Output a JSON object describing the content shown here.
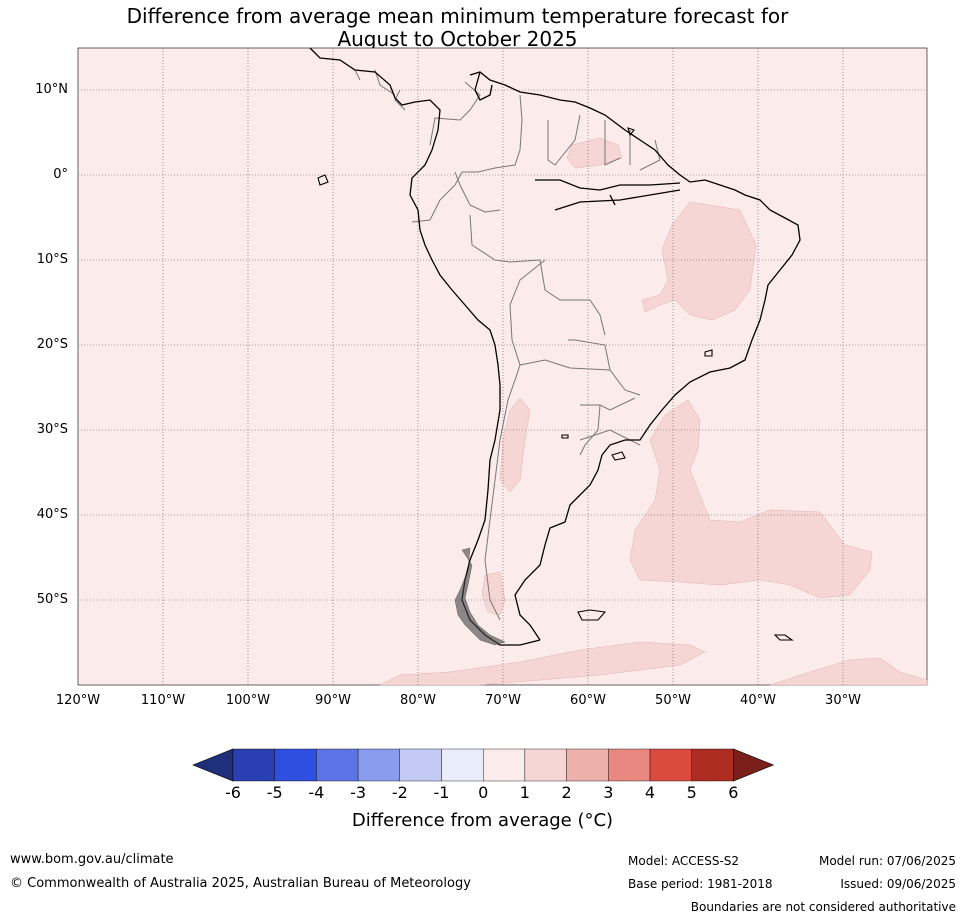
{
  "title_line1": "Difference from average mean minimum temperature forecast for",
  "title_line2": "August to October 2025",
  "latitude_labels": [
    "10°N",
    "0°",
    "10°S",
    "20°S",
    "30°S",
    "40°S",
    "50°S"
  ],
  "longitude_labels": [
    "120°W",
    "110°W",
    "100°W",
    "90°W",
    "80°W",
    "70°W",
    "60°W",
    "50°W",
    "40°W",
    "30°W"
  ],
  "colorbar": {
    "ticks": [
      "-6",
      "-5",
      "-4",
      "-3",
      "-2",
      "-1",
      "0",
      "1",
      "2",
      "3",
      "4",
      "5",
      "6"
    ],
    "colors": [
      "#1f2f7a",
      "#2a3fb2",
      "#2f4fe0",
      "#5c74e6",
      "#8a9ced",
      "#c3cbf4",
      "#e9ecfb",
      "#fbebea",
      "#f6d6d4",
      "#eeb0ab",
      "#e98880",
      "#db4b3d",
      "#ad2d22",
      "#7a1f1a"
    ],
    "label": "Difference from average (°C)",
    "label_text": "Difference from average (",
    "label_unit": "°C)"
  },
  "map_colors": {
    "background": "#fbebea",
    "warm_patch": "#f6d6d4",
    "coast": "#000000",
    "borders": "#777777"
  },
  "footer": {
    "website": "www.bom.gov.au/climate",
    "copyright": "© Commonwealth of Australia 2025, Australian Bureau of Meteorology",
    "model": "Model: ACCESS-S2",
    "base_period": "Base period: 1981-2018",
    "model_run": "Model run: 07/06/2025",
    "issued": "Issued: 09/06/2025",
    "disclaimer": "Boundaries are not considered authoritative"
  }
}
